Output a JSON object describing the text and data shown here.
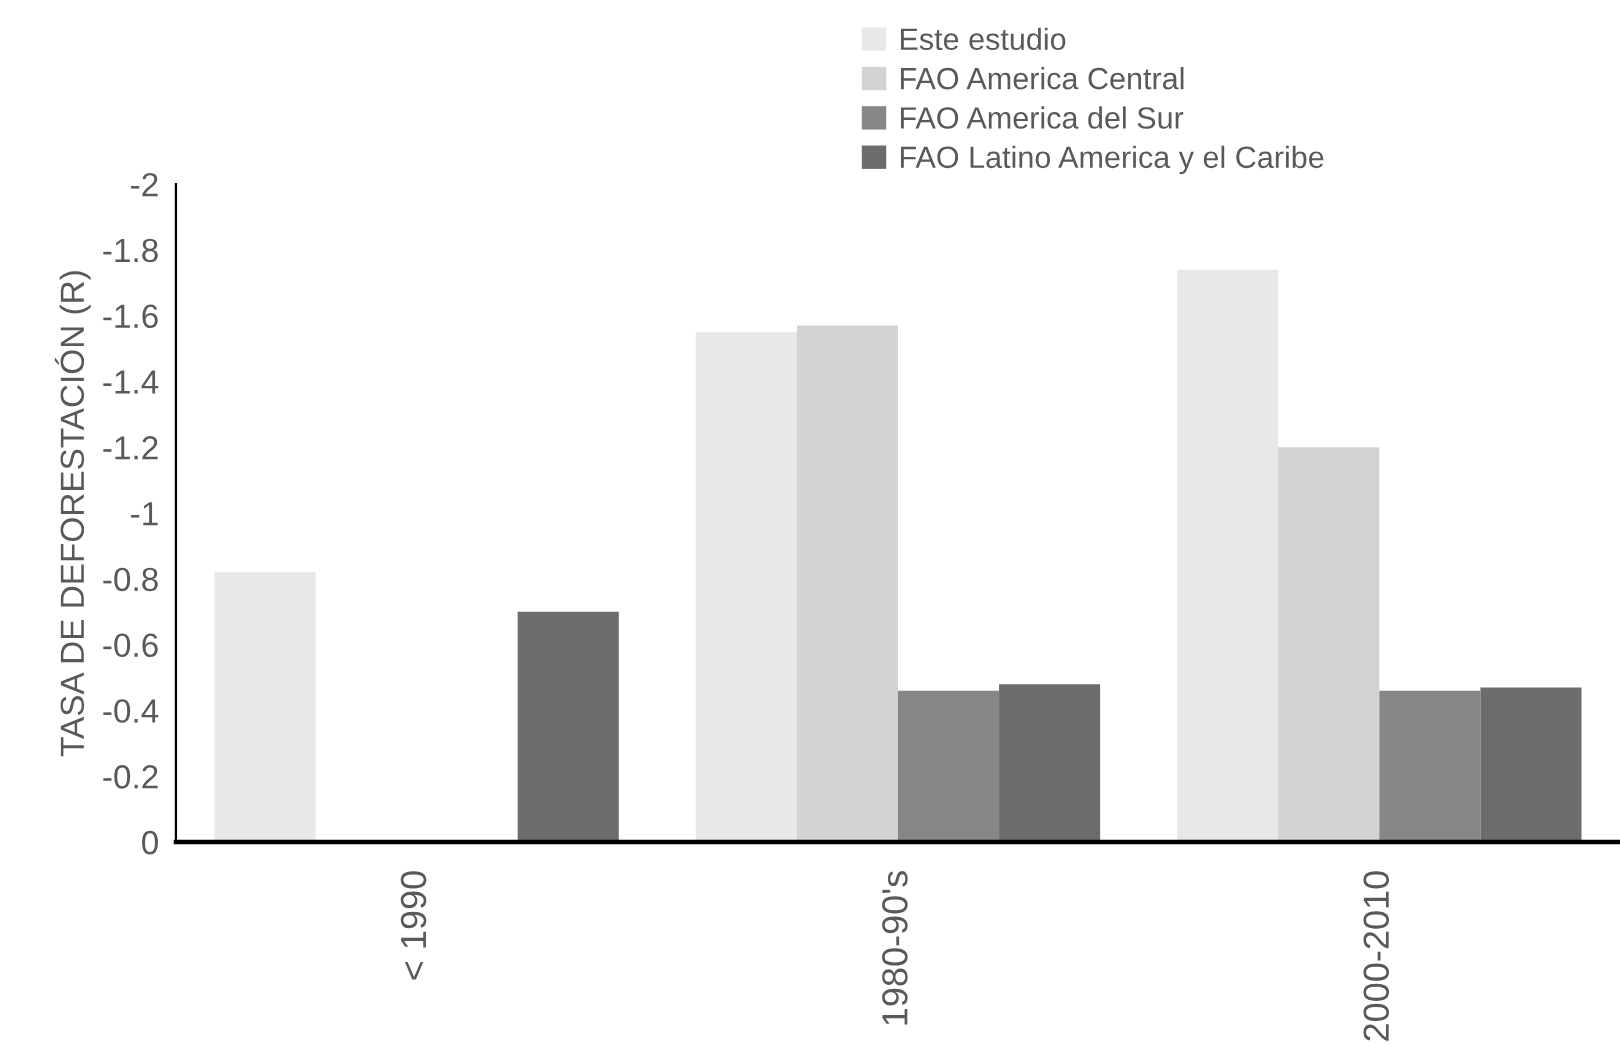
{
  "chart_data": {
    "type": "bar",
    "ylabel": "TASA DE DEFORESTACIÓN (R)",
    "categories": [
      "< 1990",
      "1980-90's",
      "2000-2010"
    ],
    "series": [
      {
        "name": "Este estudio",
        "color": "#e8e8e8",
        "values": [
          -0.82,
          -1.55,
          -1.74
        ]
      },
      {
        "name": "FAO America Central",
        "color": "#d3d3d3",
        "values": [
          null,
          -1.57,
          -1.2
        ]
      },
      {
        "name": "FAO America del Sur",
        "color": "#878787",
        "values": [
          null,
          -0.46,
          -0.46
        ]
      },
      {
        "name": "FAO Latino America y el Caribe",
        "color": "#6b6c6b",
        "values": [
          -0.7,
          -0.48,
          -0.47
        ]
      }
    ],
    "ylim": [
      0,
      -2
    ],
    "yticks": [
      0,
      -0.2,
      -0.4,
      -0.6,
      -0.8,
      -1,
      -1.2,
      -1.4,
      -1.6,
      -1.8,
      -2
    ],
    "grid": false,
    "legend": "top right"
  }
}
